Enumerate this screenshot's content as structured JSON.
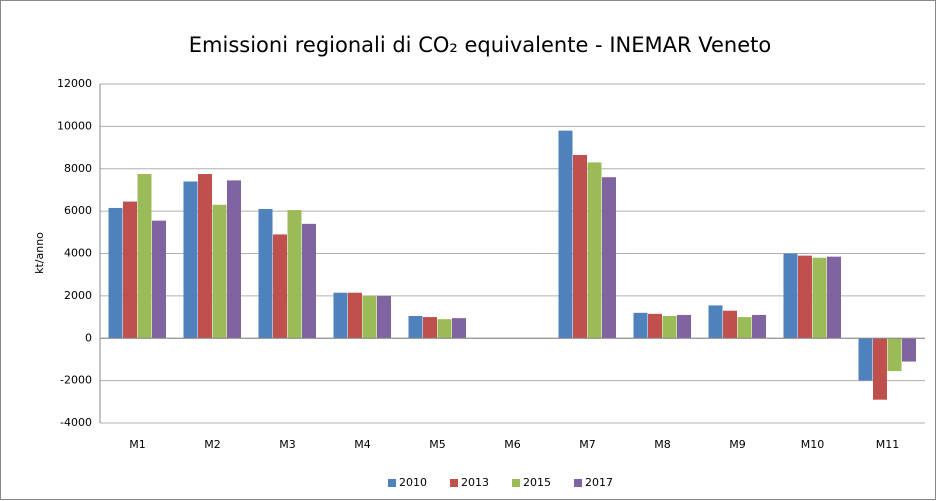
{
  "chart_data": {
    "type": "bar",
    "title": "Emissioni regionali di CO₂ equivalente - INEMAR Veneto",
    "y_label": "kt/anno",
    "categories": [
      "M1",
      "M2",
      "M3",
      "M4",
      "M5",
      "M6",
      "M7",
      "M8",
      "M9",
      "M10",
      "M11"
    ],
    "series": [
      {
        "name": "2010",
        "color": "#4f81bd",
        "values": [
          6150,
          7400,
          6100,
          2150,
          1050,
          0,
          9800,
          1200,
          1550,
          4000,
          -2000
        ]
      },
      {
        "name": "2013",
        "color": "#c0504d",
        "values": [
          6450,
          7750,
          4900,
          2150,
          1000,
          0,
          8650,
          1150,
          1300,
          3900,
          -2900
        ]
      },
      {
        "name": "2015",
        "color": "#9bbb59",
        "values": [
          7750,
          6300,
          6050,
          2000,
          900,
          0,
          8300,
          1050,
          1000,
          3800,
          -1550
        ]
      },
      {
        "name": "2017",
        "color": "#8064a2",
        "values": [
          5550,
          7450,
          5400,
          2000,
          950,
          0,
          7600,
          1100,
          1100,
          3850,
          -1100
        ]
      }
    ],
    "ylim": [
      -4000,
      12000
    ],
    "yticks": [
      -4000,
      -2000,
      0,
      2000,
      4000,
      6000,
      8000,
      10000,
      12000
    ],
    "grid": true,
    "legend": "bottom"
  }
}
